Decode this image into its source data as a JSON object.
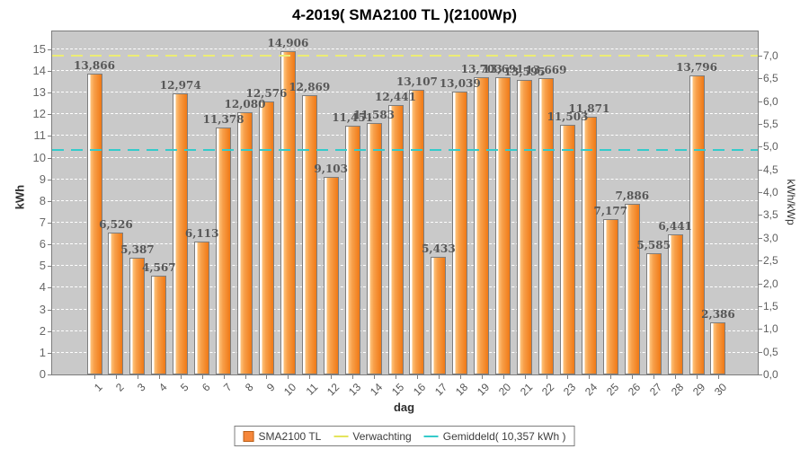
{
  "title": "4-2019( SMA2100 TL )(2100Wp)",
  "axes": {
    "left_label": "kWh",
    "right_label": "kWh/kWp",
    "x_label": "dag",
    "left_ticks": [
      "0",
      "1",
      "2",
      "3",
      "4",
      "5",
      "6",
      "7",
      "8",
      "9",
      "10",
      "11",
      "12",
      "13",
      "14",
      "15"
    ],
    "right_ticks": [
      "0,0",
      "0,5",
      "1,0",
      "1,5",
      "2,0",
      "2,5",
      "3,0",
      "3,5",
      "4,0",
      "4,5",
      "5,0",
      "5,5",
      "6,0",
      "6,5",
      "7,0"
    ]
  },
  "legend": {
    "series_label": "SMA2100 TL",
    "expected_label": "Verwachting",
    "average_label": "Gemiddeld( 10,357 kWh )"
  },
  "colors": {
    "bar_light": "#fdc178",
    "bar_mid": "#f8a04a",
    "bar_dark": "#ef7916",
    "bar_border": "#7d7d7d",
    "plot_background": "#c9c9c9",
    "gridline": "#ffffff",
    "expected_line": "#ecec74",
    "average_line": "#35cbcb",
    "value_label": "#575757"
  },
  "chart_data": {
    "type": "bar",
    "title": "4-2019( SMA2100 TL )(2100Wp)",
    "xlabel": "dag",
    "ylabel": "kWh",
    "ylabel_right": "kWh/kWp",
    "ylim": [
      0,
      15.82
    ],
    "ylim_right": [
      0,
      7.53
    ],
    "grid": "horizontal, white dashed, every 1 kWh",
    "legend_position": "bottom-center",
    "categories": [
      "1",
      "2",
      "3",
      "4",
      "5",
      "6",
      "7",
      "8",
      "9",
      "10",
      "11",
      "12",
      "13",
      "14",
      "15",
      "16",
      "17",
      "18",
      "19",
      "20",
      "21",
      "22",
      "23",
      "24",
      "25",
      "26",
      "27",
      "28",
      "29",
      "30"
    ],
    "series": [
      {
        "name": "SMA2100 TL",
        "unit": "kWh",
        "values": [
          13.866,
          6.526,
          5.387,
          4.567,
          12.974,
          6.113,
          11.378,
          12.08,
          12.576,
          14.906,
          12.869,
          9.103,
          11.451,
          11.583,
          12.441,
          13.107,
          5.433,
          13.039,
          13.703,
          13.691,
          13.595,
          13.669,
          11.503,
          11.871,
          7.177,
          7.886,
          5.585,
          6.441,
          13.796,
          2.386
        ],
        "value_labels": [
          "13,866",
          "6,526",
          "5,387",
          "4,567",
          "12,974",
          "6,113",
          "11,378",
          "12,080",
          "12,576",
          "14,906",
          "12,869",
          "9,103",
          "11,451",
          "11,583",
          "12,441",
          "13,107",
          "5,433",
          "13,039",
          "13,703",
          "13,691",
          "13,595",
          "13,669",
          "11,503",
          "11,871",
          "7,177",
          "7,886",
          "5,585",
          "6,441",
          "13,796",
          "2,386"
        ]
      }
    ],
    "reference_lines": [
      {
        "name": "Verwachting",
        "value_kwh": 14.7,
        "style": "dashed",
        "color": "#ecec74"
      },
      {
        "name": "Gemiddeld",
        "value_kwh": 10.357,
        "style": "dashed",
        "color": "#35cbcb",
        "label": "Gemiddeld( 10,357 kWh )"
      }
    ]
  }
}
